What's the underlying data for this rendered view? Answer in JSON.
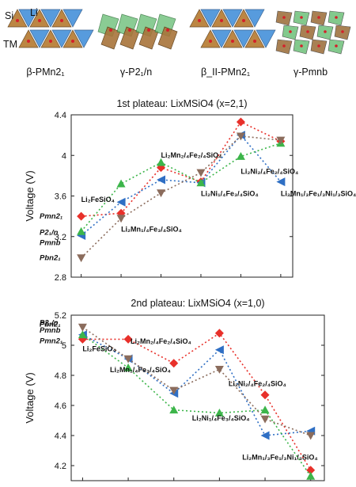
{
  "structures": [
    {
      "id": "beta-pmn21",
      "label": "β-PMn2₁",
      "style": "hex"
    },
    {
      "id": "gamma-p21n",
      "label": "γ-P2₁/n",
      "style": "chain"
    },
    {
      "id": "betaII-pmn21",
      "label": "β_II-PMn2₁",
      "style": "hex"
    },
    {
      "id": "gamma-pmnb",
      "label": "γ-Pmnb",
      "style": "dense"
    }
  ],
  "atom_labels": {
    "si": "Si",
    "li": "Li",
    "tm": "TM"
  },
  "colors": {
    "red": "#e8302a",
    "blue": "#2f6fc4",
    "green": "#3cb54a",
    "brown": "#8b6c5c",
    "frame": "#222222"
  },
  "chart_data": [
    {
      "type": "scatter",
      "title": "1st plateau: LixMSiO4 (x=2,1)",
      "ylabel": "Voltage (V)",
      "ylim": [
        2.8,
        4.4
      ],
      "yticks": [
        2.8,
        3.2,
        3.6,
        4.0,
        4.4
      ],
      "ytick_labels": [
        "2.8",
        "3.2",
        "3.6",
        "4",
        "4.4"
      ],
      "xlim": [
        0,
        5
      ],
      "x": [
        1,
        2,
        3,
        4,
        5
      ],
      "series": [
        {
          "key": "pmn21",
          "color": "red",
          "marker": "diamond",
          "values": [
            3.4,
            3.43,
            3.88,
            3.74,
            4.33,
            4.14
          ]
        },
        {
          "key": "p21n",
          "color": "blue",
          "marker": "tri-left",
          "values": [
            3.21,
            3.54,
            3.76,
            3.73,
            4.2,
            3.74
          ]
        },
        {
          "key": "pmnb",
          "color": "green",
          "marker": "tri-up",
          "values": [
            3.25,
            3.72,
            3.93,
            3.73,
            3.99,
            4.12
          ]
        },
        {
          "key": "pbn21",
          "color": "brown",
          "marker": "tri-down",
          "values": [
            2.99,
            3.38,
            3.63,
            3.83,
            4.19,
            4.15
          ]
        }
      ],
      "x_multi": [
        1,
        2,
        3,
        4,
        5,
        6
      ],
      "annotations": [
        {
          "text": "Li₂FeSiO₄",
          "x": 1,
          "y": 3.54
        },
        {
          "text": "Li₂Mn₁/₄Fe₃/₄SiO₄",
          "x": 2,
          "y": 3.25
        },
        {
          "text": "Li₂Mn₂/₄Fe₂/₄SiO₄",
          "x": 3,
          "y": 3.98
        },
        {
          "text": "Li₂Ni₁/₄Fe₃/₄SiO₄",
          "x": 4,
          "y": 3.6
        },
        {
          "text": "Li₂Ni₂/₄Fe₂/₄SiO₄",
          "x": 5,
          "y": 3.82
        },
        {
          "text": "Li₂Mn₁/₃Fe₁/₃Ni₁/₃SiO₄",
          "x": 6,
          "y": 3.6
        }
      ],
      "phase_labels": [
        {
          "text": "Pmn2₁",
          "y": 3.4
        },
        {
          "text": "P2₁/n",
          "y": 3.24
        },
        {
          "text": "Pmnb",
          "y": 3.14
        },
        {
          "text": "Pbn2₁",
          "y": 2.99
        }
      ]
    },
    {
      "type": "scatter",
      "title": "2nd plateau: LixMSiO4 (x=1,0)",
      "ylabel": "Voltage (V)",
      "ylim": [
        4.1,
        5.2
      ],
      "yticks": [
        4.2,
        4.4,
        4.6,
        4.8,
        5.0,
        5.2
      ],
      "ytick_labels": [
        "4.2",
        "4.4",
        "4.6",
        "4.8",
        "5",
        "5.2"
      ],
      "x_multi": [
        1,
        2,
        3,
        4,
        5,
        6
      ],
      "series": [
        {
          "key": "pmn21",
          "color": "red",
          "marker": "diamond",
          "values": [
            5.04,
            5.04,
            4.88,
            5.08,
            4.67,
            4.17
          ]
        },
        {
          "key": "p21n",
          "color": "blue",
          "marker": "tri-left",
          "values": [
            5.07,
            4.91,
            4.68,
            4.97,
            4.4,
            4.43
          ]
        },
        {
          "key": "pmnb",
          "color": "green",
          "marker": "tri-up",
          "values": [
            5.07,
            4.85,
            4.57,
            4.55,
            4.57,
            4.13
          ]
        },
        {
          "key": "pbn21",
          "color": "brown",
          "marker": "tri-down",
          "values": [
            5.12,
            4.91,
            4.7,
            4.84,
            4.51,
            4.4
          ]
        }
      ],
      "annotations": [
        {
          "text": "Li₂FeSiO₄",
          "x": 1,
          "y": 4.96
        },
        {
          "text": "Li₂Mn₂/₄Fe₂/₄SiO₄",
          "x": 2.05,
          "y": 5.01
        },
        {
          "text": "Li₂Mn₁/₄Fe₃/₄SiO₄",
          "x": 1.6,
          "y": 4.82
        },
        {
          "text": "Li₂Ni₂/₄Fe₂/₄SiO₄",
          "x": 4.2,
          "y": 4.73
        },
        {
          "text": "Li₂Ni₁/₄Fe₃/₄SiO₄",
          "x": 3.4,
          "y": 4.5
        },
        {
          "text": "Li₂Mn₁/₃Fe₁/₃Ni₁/₃SiO₄",
          "x": 4.5,
          "y": 4.24
        }
      ],
      "phase_labels": [
        {
          "text": "P2₁/n",
          "y": 5.15
        },
        {
          "text": "Pbn2₁",
          "y": 5.14
        },
        {
          "text": "Pmnb",
          "y": 5.1
        },
        {
          "text": "Pmn2₁",
          "y": 5.03
        }
      ]
    }
  ]
}
